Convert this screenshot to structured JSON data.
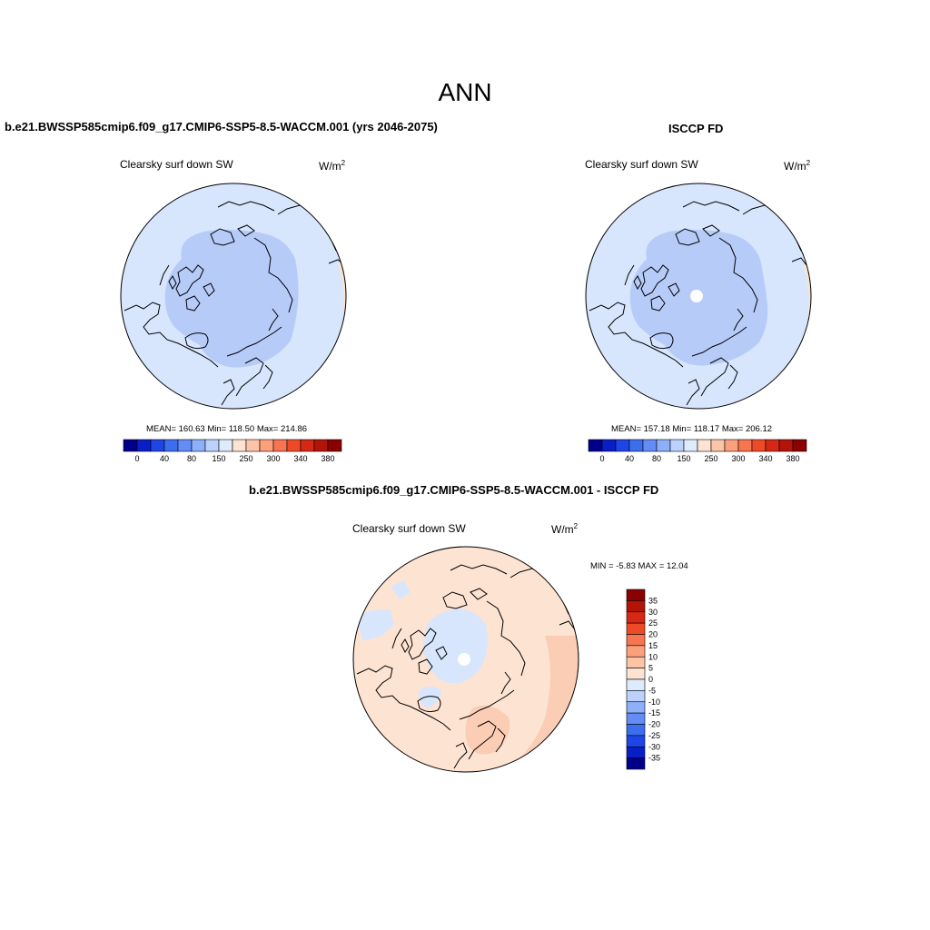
{
  "title": "ANN",
  "colors": {
    "land": "#cfe2ff",
    "ice_low": "#b4c9f7",
    "ocean_warm": "#fde3cf",
    "diff_pos": "#fbd3bd",
    "coast": "#000000"
  },
  "panels": {
    "model": {
      "title": "b.e21.BWSSP585cmip6.f09_g17.CMIP6-SSP5-8.5-WACCM.001 (yrs 2046-2075)",
      "variable": "Clearsky surf down SW",
      "units": "W/m",
      "units_exp": "2",
      "stats": "MEAN= 160.63  Min= 118.50  Max= 214.86",
      "ticks": [
        "0",
        "40",
        "80",
        "150",
        "250",
        "300",
        "340",
        "380"
      ]
    },
    "obs": {
      "title": "ISCCP FD",
      "variable": "Clearsky surf down SW",
      "units": "W/m",
      "units_exp": "2",
      "stats": "MEAN= 157.18  Min= 118.17  Max= 206.12",
      "ticks": [
        "0",
        "40",
        "80",
        "150",
        "250",
        "300",
        "340",
        "380"
      ]
    },
    "diff": {
      "title": "b.e21.BWSSP585cmip6.f09_g17.CMIP6-SSP5-8.5-WACCM.001 - ISCCP FD",
      "variable": "Clearsky surf down SW",
      "units": "W/m",
      "units_exp": "2",
      "stats": "MIN =  -5.83 MAX =  12.04",
      "ticks": [
        "35",
        "30",
        "25",
        "20",
        "15",
        "10",
        "5",
        "0",
        "-5",
        "-10",
        "-15",
        "-20",
        "-25",
        "-30",
        "-35"
      ]
    }
  },
  "colorbar_main": [
    "#00008b",
    "#0a1ec8",
    "#1e46e6",
    "#3c6ef0",
    "#648cf5",
    "#8cb0fa",
    "#bcd2fc",
    "#deebfd",
    "#fde3d2",
    "#fcc5a8",
    "#fba07a",
    "#f77550",
    "#ef4a28",
    "#d62814",
    "#b41408",
    "#8b0000"
  ],
  "colorbar_diff": [
    "#8b0000",
    "#b41408",
    "#d62814",
    "#ef4a28",
    "#f77550",
    "#fba07a",
    "#fcc5a8",
    "#fde3d2",
    "#deebfd",
    "#bcd2fc",
    "#8cb0fa",
    "#648cf5",
    "#3c6ef0",
    "#1e46e6",
    "#0a1ec8",
    "#00008b"
  ]
}
